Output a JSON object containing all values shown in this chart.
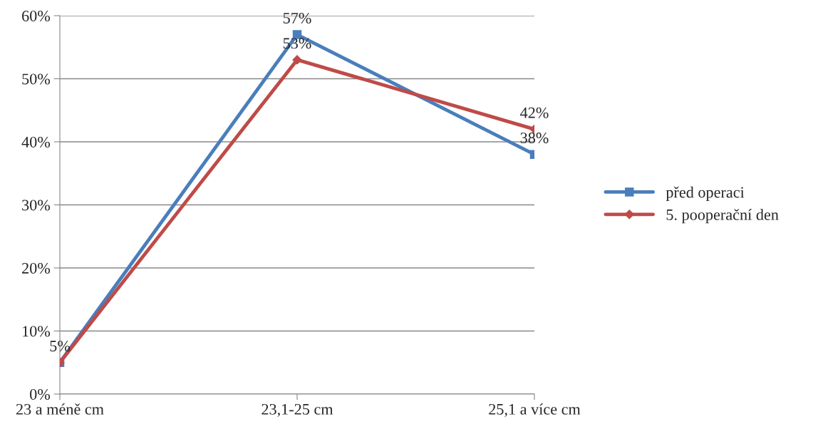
{
  "chart_data": {
    "type": "line",
    "categories": [
      "23 a méně cm",
      "23,1-25 cm",
      "25,1 a více cm"
    ],
    "series": [
      {
        "name": "před operaci",
        "color": "#4a7ebb",
        "marker": "square",
        "values": [
          5,
          57,
          38
        ],
        "value_labels": [
          "5%",
          "57%",
          "38%"
        ]
      },
      {
        "name": "5. pooperační den",
        "color": "#be4b48",
        "marker": "diamond",
        "values": [
          5,
          53,
          42
        ],
        "value_labels": [
          null,
          "53%",
          "42%"
        ]
      }
    ],
    "ylim": [
      0,
      60
    ],
    "yticks": [
      {
        "value": 0,
        "label": "0%"
      },
      {
        "value": 10,
        "label": "10%"
      },
      {
        "value": 20,
        "label": "20%"
      },
      {
        "value": 30,
        "label": "30%"
      },
      {
        "value": 40,
        "label": "40%"
      },
      {
        "value": 50,
        "label": "50%"
      },
      {
        "value": 60,
        "label": "60%"
      }
    ],
    "grid": "y",
    "legend": "right"
  }
}
